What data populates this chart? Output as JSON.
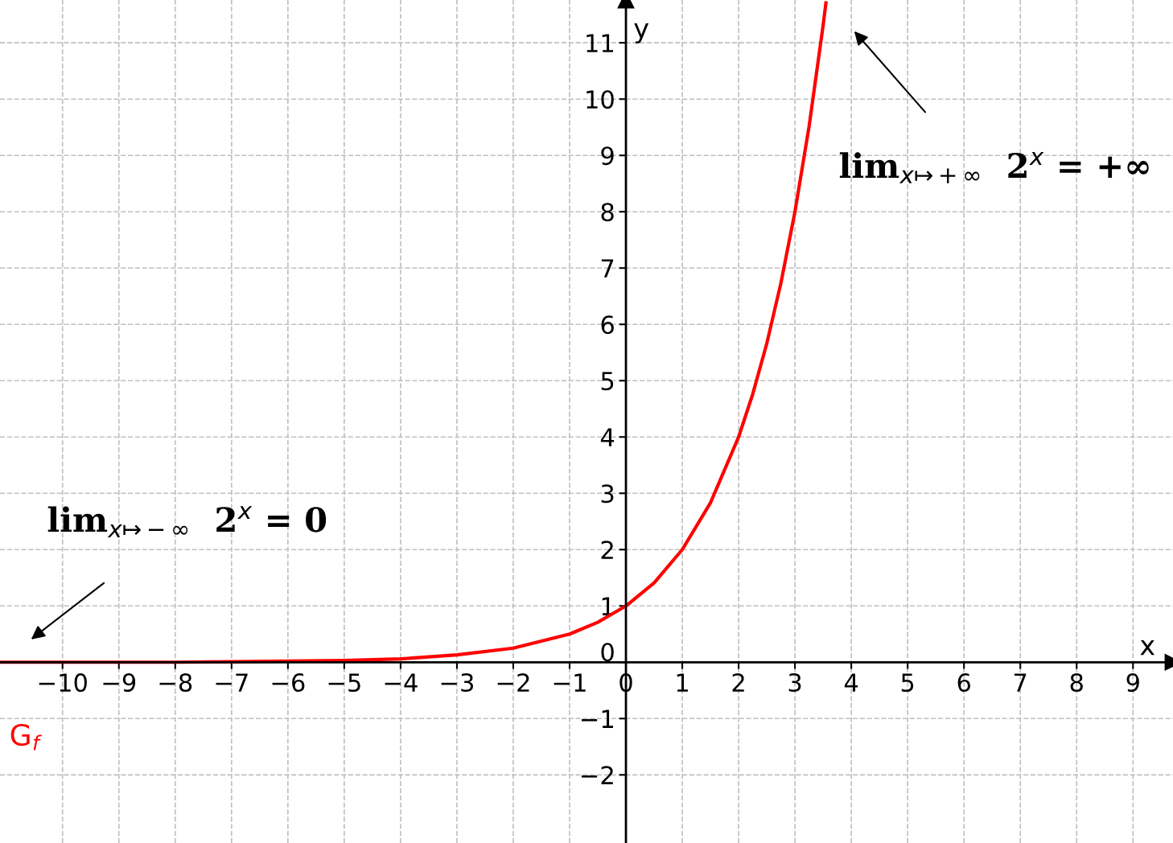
{
  "chart_data": {
    "type": "line",
    "xlabel": "x",
    "ylabel": "y",
    "xlim": [
      -11.11,
      9.71
    ],
    "ylim": [
      -3.21,
      11.76
    ],
    "xticks": [
      {
        "value": -10,
        "label": "−10"
      },
      {
        "value": -9,
        "label": "−9"
      },
      {
        "value": -8,
        "label": "−8"
      },
      {
        "value": -7,
        "label": "−7"
      },
      {
        "value": -6,
        "label": "−6"
      },
      {
        "value": -5,
        "label": "−5"
      },
      {
        "value": -4,
        "label": "−4"
      },
      {
        "value": -3,
        "label": "−3"
      },
      {
        "value": -2,
        "label": "−2"
      },
      {
        "value": -1,
        "label": "−1"
      },
      0,
      1,
      2,
      3,
      4,
      5,
      6,
      7,
      8,
      9
    ],
    "yticks": [
      {
        "value": -2,
        "label": "−2"
      },
      {
        "value": -1,
        "label": "−1"
      },
      0,
      1,
      2,
      3,
      4,
      5,
      6,
      7,
      8,
      9,
      10,
      11
    ],
    "grid": true,
    "line_style": "solid",
    "marker": "none",
    "series": [
      {
        "name": "G$_{f}$",
        "color": "#ff0000",
        "x": [
          -11.1,
          -10,
          -9,
          -8,
          -7,
          -6,
          -5,
          -4,
          -3,
          -2,
          -1,
          -0.5,
          0,
          0.5,
          1,
          1.5,
          2,
          2.25,
          2.5,
          2.75,
          3,
          3.25,
          3.5,
          3.55
        ],
        "values": [
          0,
          0,
          0,
          0,
          0.01,
          0.02,
          0.03,
          0.06,
          0.13,
          0.25,
          0.5,
          0.71,
          1,
          1.41,
          2,
          2.83,
          4,
          4.76,
          5.66,
          6.73,
          8,
          9.51,
          11.31,
          11.71
        ]
      }
    ],
    "annotations": [
      "lim$_{x↦−∞}$  2$^{x}$ = 0",
      "lim$_{x↦+∞}$  2$^{x}$ = +∞"
    ]
  }
}
